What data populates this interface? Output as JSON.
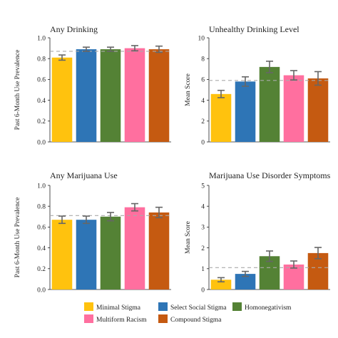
{
  "chart_data": [
    {
      "type": "bar",
      "title": "Any Drinking",
      "ylabel": "Past 6-Month Use Prevalence",
      "ylim": [
        0,
        1.0
      ],
      "yticks": [
        "0.0",
        "0.2",
        "0.4",
        "0.6",
        "0.8",
        "1.0"
      ],
      "categories": [
        "Minimal Stigma",
        "Select Social Stigma",
        "Homonegativism",
        "Multiform Racism",
        "Compound Stigma"
      ],
      "values": [
        0.81,
        0.89,
        0.89,
        0.9,
        0.89
      ],
      "error": [
        0.025,
        0.02,
        0.02,
        0.025,
        0.03
      ],
      "reference_line": 0.87
    },
    {
      "type": "bar",
      "title": "Unhealthy Drinking Level",
      "ylabel": "Mean Score",
      "ylim": [
        0,
        10
      ],
      "yticks": [
        "0",
        "2",
        "4",
        "6",
        "8",
        "10"
      ],
      "categories": [
        "Minimal Stigma",
        "Select Social Stigma",
        "Homonegativism",
        "Multiform Racism",
        "Compound Stigma"
      ],
      "values": [
        4.6,
        5.8,
        7.2,
        6.4,
        6.1
      ],
      "error": [
        0.35,
        0.45,
        0.55,
        0.45,
        0.65
      ],
      "reference_line": 5.9
    },
    {
      "type": "bar",
      "title": "Any Marijuana Use",
      "ylabel": "Past 6-Month Use Prevalence",
      "ylim": [
        0,
        1.0
      ],
      "yticks": [
        "0.0",
        "0.2",
        "0.4",
        "0.6",
        "0.8",
        "1.0"
      ],
      "categories": [
        "Minimal Stigma",
        "Select Social Stigma",
        "Homonegativism",
        "Multiform Racism",
        "Compound Stigma"
      ],
      "values": [
        0.67,
        0.67,
        0.7,
        0.79,
        0.74
      ],
      "error": [
        0.035,
        0.035,
        0.04,
        0.035,
        0.05
      ],
      "reference_line": 0.71
    },
    {
      "type": "bar",
      "title": "Marijuana Use Disorder Symptoms",
      "ylabel": "Mean Score",
      "ylim": [
        0,
        5
      ],
      "yticks": [
        "0",
        "1",
        "2",
        "3",
        "4",
        "5"
      ],
      "categories": [
        "Minimal Stigma",
        "Select Social Stigma",
        "Homonegativism",
        "Multiform Racism",
        "Compound Stigma"
      ],
      "values": [
        0.47,
        0.75,
        1.6,
        1.2,
        1.75
      ],
      "error": [
        0.1,
        0.12,
        0.25,
        0.17,
        0.27
      ],
      "reference_line": 1.05
    }
  ],
  "legend": {
    "items": [
      {
        "label": "Minimal Stigma",
        "color": "#FFC20E"
      },
      {
        "label": "Select Social Stigma",
        "color": "#2E75B6"
      },
      {
        "label": "Homonegativism",
        "color": "#548235"
      },
      {
        "label": "Multiform Racism",
        "color": "#FF6F9F"
      },
      {
        "label": "Compound Stigma",
        "color": "#C55A11"
      }
    ]
  },
  "colors": {
    "bars": [
      "#FFC20E",
      "#2E75B6",
      "#548235",
      "#FF6F9F",
      "#C55A11"
    ],
    "error_bar": "#666666",
    "reference_line": "#AAAAAA",
    "axis": "#222222"
  }
}
